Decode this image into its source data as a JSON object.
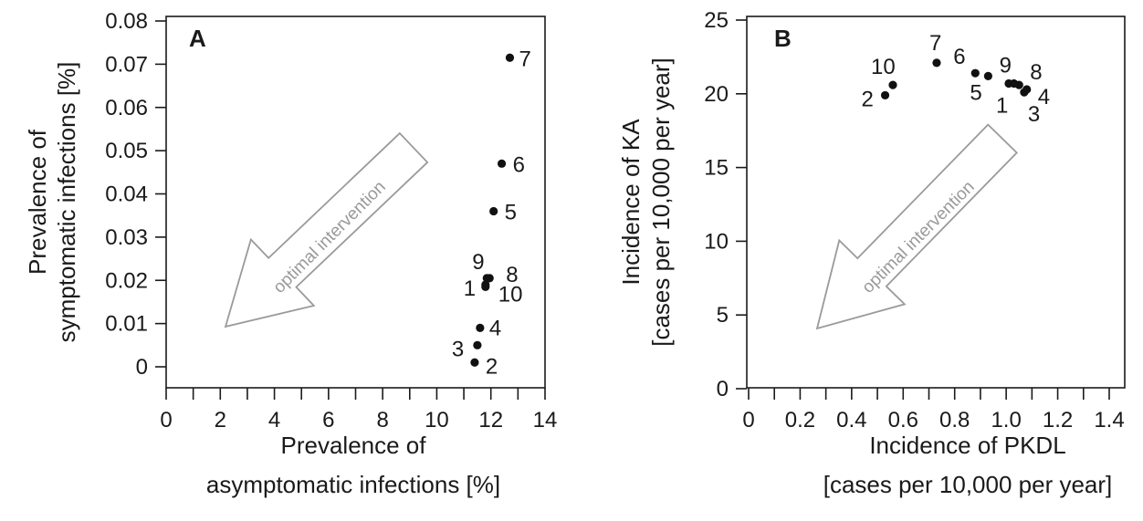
{
  "chart_data": [
    {
      "type": "scatter",
      "panel_label": "A",
      "xlabel_lines": [
        "Prevalence of",
        "asymptomatic infections [%]"
      ],
      "ylabel_lines": [
        "Prevalence of",
        "symptomatic infections [%]"
      ],
      "xlim": [
        0,
        14
      ],
      "ylim": [
        0,
        0.08
      ],
      "xticks": [
        "0",
        "2",
        "4",
        "6",
        "8",
        "10",
        "12",
        "14"
      ],
      "yticks": [
        "0",
        "0.01",
        "0.02",
        "0.03",
        "0.04",
        "0.05",
        "0.06",
        "0.07",
        "0.08"
      ],
      "annotation": "optimal intervention",
      "points": [
        {
          "label": "1",
          "x": 11.8,
          "y": 0.019
        },
        {
          "label": "2",
          "x": 11.4,
          "y": 0.001
        },
        {
          "label": "3",
          "x": 11.5,
          "y": 0.005
        },
        {
          "label": "4",
          "x": 11.6,
          "y": 0.009
        },
        {
          "label": "5",
          "x": 12.1,
          "y": 0.036
        },
        {
          "label": "6",
          "x": 12.4,
          "y": 0.047
        },
        {
          "label": "7",
          "x": 12.7,
          "y": 0.0715
        },
        {
          "label": "8",
          "x": 11.95,
          "y": 0.0205
        },
        {
          "label": "9",
          "x": 11.85,
          "y": 0.0205
        },
        {
          "label": "10",
          "x": 11.8,
          "y": 0.0185
        }
      ]
    },
    {
      "type": "scatter",
      "panel_label": "B",
      "xlabel_lines": [
        "Incidence of PKDL",
        "[cases per 10,000 per year]"
      ],
      "ylabel_lines": [
        "Incidence of KA",
        "[cases per 10,000 per year]"
      ],
      "xlim": [
        0,
        1.4
      ],
      "ylim": [
        0,
        25
      ],
      "xticks": [
        "0",
        "0.2",
        "0.4",
        "0.6",
        "0.8",
        "1.0",
        "1.2",
        "1.4"
      ],
      "yticks": [
        "0",
        "5",
        "10",
        "15",
        "20",
        "25"
      ],
      "annotation": "optimal intervention",
      "points": [
        {
          "label": "1",
          "x": 1.01,
          "y": 20.7
        },
        {
          "label": "2",
          "x": 0.53,
          "y": 19.9
        },
        {
          "label": "3",
          "x": 1.07,
          "y": 20.1
        },
        {
          "label": "4",
          "x": 1.08,
          "y": 20.3
        },
        {
          "label": "5",
          "x": 0.93,
          "y": 21.2
        },
        {
          "label": "6",
          "x": 0.88,
          "y": 21.4
        },
        {
          "label": "7",
          "x": 0.73,
          "y": 22.1
        },
        {
          "label": "8",
          "x": 1.05,
          "y": 20.6
        },
        {
          "label": "9",
          "x": 1.03,
          "y": 20.7
        },
        {
          "label": "10",
          "x": 0.56,
          "y": 20.6
        }
      ]
    }
  ]
}
